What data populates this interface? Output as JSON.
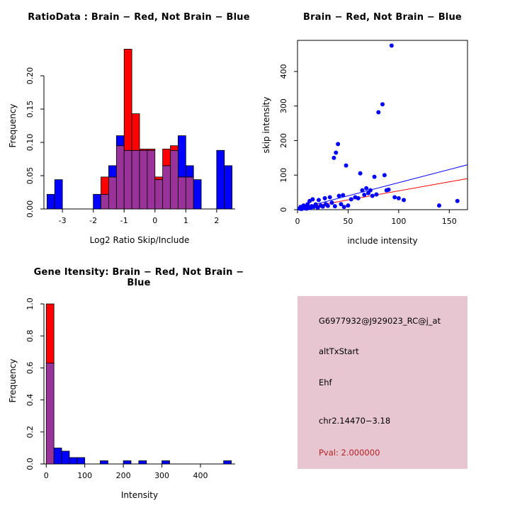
{
  "figure": {
    "background": "#ffffff"
  },
  "chart_data": [
    {
      "type": "bar",
      "subtype": "overlaid-histogram",
      "title": "RatioData : Brain − Red, Not Brain − Blue",
      "xlabel": "Log2 Ratio Skip/Include",
      "ylabel": "Frequency",
      "xlim": [
        -3.6,
        2.6
      ],
      "ylim": [
        0,
        0.25
      ],
      "xticks": [
        -3,
        -2,
        -1,
        0,
        1,
        2
      ],
      "yticks": [
        0.0,
        0.05,
        0.1,
        0.15,
        0.2
      ],
      "ytick_labels": [
        "0.00",
        "0.05",
        "0.10",
        "0.15",
        "0.20"
      ],
      "grid": false,
      "box": false,
      "bin_start": -3.5,
      "bin_width": 0.25,
      "overlap_color": "#993399",
      "series": [
        {
          "name": "Not Brain",
          "color": "#0000ff",
          "values": [
            0.022,
            0.044,
            0,
            0,
            0,
            0,
            0.022,
            0.022,
            0.065,
            0.11,
            0.088,
            0.088,
            0.088,
            0.088,
            0.044,
            0.065,
            0.088,
            0.11,
            0.065,
            0.044,
            0,
            0,
            0.088,
            0.065
          ]
        },
        {
          "name": "Brain",
          "color": "#ff0000",
          "values": [
            0,
            0,
            0,
            0,
            0,
            0,
            0,
            0.048,
            0.048,
            0.095,
            0.24,
            0.143,
            0.09,
            0.09,
            0.048,
            0.09,
            0.095,
            0.048,
            0.048,
            0,
            0,
            0,
            0,
            0
          ]
        }
      ]
    },
    {
      "type": "scatter",
      "title": "Brain − Red, Not Brain − Blue",
      "xlabel": "include intensity",
      "ylabel": "skip intensity",
      "xlim": [
        0,
        168
      ],
      "ylim": [
        0,
        490
      ],
      "xticks": [
        0,
        50,
        100,
        150
      ],
      "yticks": [
        0,
        100,
        200,
        300,
        400
      ],
      "grid": false,
      "box": true,
      "point_color": "#0000ff",
      "points": [
        [
          2,
          3
        ],
        [
          3,
          8
        ],
        [
          4,
          2
        ],
        [
          5,
          6
        ],
        [
          6,
          12
        ],
        [
          7,
          4
        ],
        [
          8,
          9
        ],
        [
          9,
          3
        ],
        [
          10,
          16
        ],
        [
          11,
          6
        ],
        [
          12,
          25
        ],
        [
          13,
          5
        ],
        [
          14,
          10
        ],
        [
          15,
          30
        ],
        [
          16,
          8
        ],
        [
          18,
          15
        ],
        [
          20,
          6
        ],
        [
          21,
          28
        ],
        [
          23,
          12
        ],
        [
          25,
          9
        ],
        [
          27,
          33
        ],
        [
          28,
          16
        ],
        [
          30,
          11
        ],
        [
          32,
          36
        ],
        [
          34,
          20
        ],
        [
          36,
          150
        ],
        [
          37,
          10
        ],
        [
          38,
          165
        ],
        [
          40,
          190
        ],
        [
          41,
          40
        ],
        [
          43,
          16
        ],
        [
          45,
          42
        ],
        [
          46,
          8
        ],
        [
          48,
          128
        ],
        [
          50,
          12
        ],
        [
          53,
          30
        ],
        [
          57,
          36
        ],
        [
          60,
          33
        ],
        [
          62,
          105
        ],
        [
          64,
          56
        ],
        [
          66,
          43
        ],
        [
          68,
          62
        ],
        [
          70,
          48
        ],
        [
          72,
          56
        ],
        [
          74,
          40
        ],
        [
          76,
          95
        ],
        [
          78,
          44
        ],
        [
          80,
          282
        ],
        [
          84,
          305
        ],
        [
          86,
          100
        ],
        [
          88,
          56
        ],
        [
          90,
          58
        ],
        [
          93,
          475
        ],
        [
          96,
          36
        ],
        [
          100,
          33
        ],
        [
          105,
          28
        ],
        [
          140,
          12
        ],
        [
          158,
          25
        ]
      ],
      "lines": [
        {
          "name": "not-brain-fit",
          "color": "#0000ff",
          "x1": 0,
          "y1": 2,
          "x2": 168,
          "y2": 130
        },
        {
          "name": "brain-fit",
          "color": "#ff0000",
          "x1": 0,
          "y1": 2,
          "x2": 168,
          "y2": 90
        }
      ]
    },
    {
      "type": "bar",
      "subtype": "overlaid-histogram",
      "title": "Gene Itensity: Brain − Red, Not Brain − Blue",
      "xlabel": "Intensity",
      "ylabel": "Frequency",
      "xlim": [
        -6,
        490
      ],
      "ylim": [
        0,
        1.04
      ],
      "xticks": [
        0,
        100,
        200,
        300,
        400
      ],
      "yticks": [
        0,
        0.2,
        0.4,
        0.6,
        0.8,
        1.0
      ],
      "ytick_labels": [
        "0.0",
        "0.2",
        "0.4",
        "0.6",
        "0.8",
        "1.0"
      ],
      "grid": false,
      "box": false,
      "bin_start": 0,
      "bin_width": 20,
      "overlap_color": "#993399",
      "series": [
        {
          "name": "Not Brain",
          "color": "#0000ff",
          "values": [
            0.63,
            0.1,
            0.08,
            0.04,
            0.04,
            0,
            0,
            0.02,
            0,
            0,
            0.02,
            0,
            0.02,
            0,
            0,
            0.02,
            0,
            0,
            0,
            0,
            0,
            0,
            0,
            0.02
          ]
        },
        {
          "name": "Brain",
          "color": "#ff0000",
          "values": [
            1.0,
            0,
            0,
            0,
            0,
            0,
            0,
            0,
            0,
            0,
            0,
            0,
            0,
            0,
            0,
            0,
            0,
            0,
            0,
            0,
            0,
            0,
            0,
            0
          ]
        }
      ]
    }
  ],
  "info_panel": {
    "bg_color": "#e7c6d1",
    "lines": [
      {
        "text": "G6977932@J929023_RC@j_at",
        "color": "#000000"
      },
      {
        "text": "altTxStart",
        "color": "#000000"
      },
      {
        "text": "Ehf",
        "color": "#000000"
      },
      {
        "text": "chr2.14470−3.18",
        "color": "#000000"
      },
      {
        "text": "Pval: 2.000000",
        "color": "#b22222"
      }
    ]
  }
}
